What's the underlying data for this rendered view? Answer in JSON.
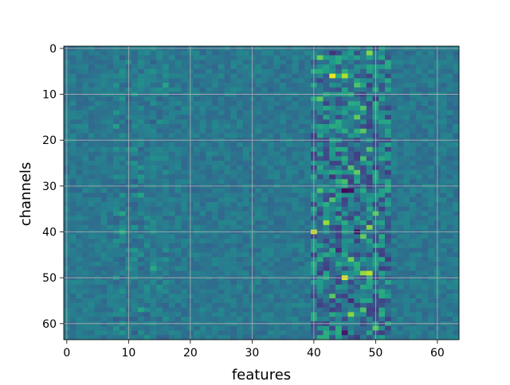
{
  "chart_data": {
    "type": "heatmap",
    "title": "",
    "xlabel": "features",
    "ylabel": "channels",
    "rows": 64,
    "cols": 64,
    "xlim": [
      -0.5,
      63.5
    ],
    "ylim": [
      63.5,
      -0.5
    ],
    "x_ticks": [
      0,
      10,
      20,
      30,
      40,
      50,
      60
    ],
    "y_ticks": [
      0,
      10,
      20,
      30,
      40,
      50,
      60
    ],
    "x_tick_labels": [
      "0",
      "10",
      "20",
      "30",
      "40",
      "50",
      "60"
    ],
    "y_tick_labels": [
      "0",
      "10",
      "20",
      "30",
      "40",
      "50",
      "60"
    ],
    "grid": true,
    "colormap": "viridis",
    "background_color": "#2f6b8e",
    "grid_color": "#b0b0b0",
    "value_range": [
      0,
      1
    ],
    "base_value": 0.4,
    "highlight_band": {
      "x_range": [
        40,
        52
      ],
      "description_level_low": 0.1,
      "description_level_high": 0.95
    },
    "highlights": [
      {
        "x": 43,
        "y": 6,
        "value": 0.97
      },
      {
        "x": 45,
        "y": 6,
        "value": 0.88
      },
      {
        "x": 49,
        "y": 1,
        "value": 0.82
      },
      {
        "x": 41,
        "y": 2,
        "value": 0.78
      },
      {
        "x": 47,
        "y": 8,
        "value": 0.72
      },
      {
        "x": 41,
        "y": 11,
        "value": 0.75
      },
      {
        "x": 48,
        "y": 13,
        "value": 0.72
      },
      {
        "x": 47,
        "y": 15,
        "value": 0.75
      },
      {
        "x": 48,
        "y": 18,
        "value": 0.74
      },
      {
        "x": 49,
        "y": 22,
        "value": 0.72
      },
      {
        "x": 48,
        "y": 24,
        "value": 0.7
      },
      {
        "x": 46,
        "y": 26,
        "value": 0.72
      },
      {
        "x": 47,
        "y": 27,
        "value": 0.76
      },
      {
        "x": 45,
        "y": 29,
        "value": 0.7
      },
      {
        "x": 41,
        "y": 31,
        "value": 0.72
      },
      {
        "x": 43,
        "y": 33,
        "value": 0.72
      },
      {
        "x": 50,
        "y": 36,
        "value": 0.74
      },
      {
        "x": 42,
        "y": 38,
        "value": 0.85
      },
      {
        "x": 40,
        "y": 40,
        "value": 0.92
      },
      {
        "x": 49,
        "y": 39,
        "value": 0.82
      },
      {
        "x": 48,
        "y": 41,
        "value": 0.76
      },
      {
        "x": 46,
        "y": 46,
        "value": 0.78
      },
      {
        "x": 48,
        "y": 49,
        "value": 0.84
      },
      {
        "x": 45,
        "y": 50,
        "value": 0.96
      },
      {
        "x": 49,
        "y": 49,
        "value": 0.9
      },
      {
        "x": 43,
        "y": 54,
        "value": 0.74
      },
      {
        "x": 46,
        "y": 58,
        "value": 0.82
      },
      {
        "x": 48,
        "y": 57,
        "value": 0.72
      },
      {
        "x": 50,
        "y": 61,
        "value": 0.74
      },
      {
        "x": 9,
        "y": 40,
        "value": 0.62
      },
      {
        "x": 14,
        "y": 48,
        "value": 0.6
      },
      {
        "x": 12,
        "y": 32,
        "value": 0.58
      },
      {
        "x": 16,
        "y": 8,
        "value": 0.58
      },
      {
        "x": 9,
        "y": 36,
        "value": 0.58
      },
      {
        "x": 12,
        "y": 57,
        "value": 0.58
      },
      {
        "x": 8,
        "y": 17,
        "value": 0.56
      }
    ],
    "lowlights": [
      {
        "x": 45,
        "y": 31,
        "value": 0.02
      },
      {
        "x": 46,
        "y": 31,
        "value": 0.05
      },
      {
        "x": 47,
        "y": 40,
        "value": 0.05
      },
      {
        "x": 45,
        "y": 62,
        "value": 0.06
      },
      {
        "x": 43,
        "y": 1,
        "value": 0.15
      },
      {
        "x": 44,
        "y": 44,
        "value": 0.12
      },
      {
        "x": 43,
        "y": 28,
        "value": 0.15
      },
      {
        "x": 46,
        "y": 55,
        "value": 0.12
      }
    ]
  }
}
